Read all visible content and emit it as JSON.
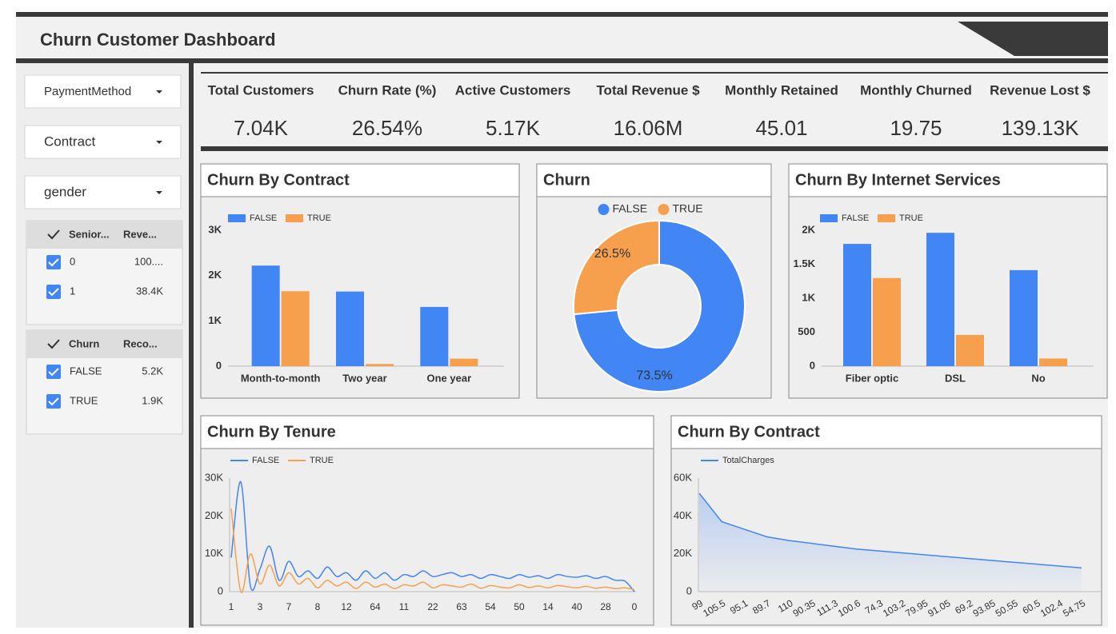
{
  "header": {
    "title": "Churn Customer Dashboard"
  },
  "filters": [
    "PaymentMethod",
    "Contract",
    "gender"
  ],
  "tables": [
    {
      "columns": [
        "Senior...",
        "Reve..."
      ],
      "rows": [
        [
          "0",
          "100...."
        ],
        [
          "1",
          "38.4K"
        ]
      ]
    },
    {
      "columns": [
        "Churn",
        "Reco..."
      ],
      "rows": [
        [
          "FALSE",
          "5.2K"
        ],
        [
          "TRUE",
          "1.9K"
        ]
      ]
    }
  ],
  "kpis": [
    {
      "label": "Total Customers",
      "value": "7.04K"
    },
    {
      "label": "Churn Rate (%)",
      "value": "26.54%"
    },
    {
      "label": "Active Customers",
      "value": "5.17K"
    },
    {
      "label": "Total Revenue $",
      "value": "16.06M"
    },
    {
      "label": "Monthly Retained",
      "value": "45.01"
    },
    {
      "label": "Monthly Churned",
      "value": "19.75"
    },
    {
      "label": "Revenue Lost $",
      "value": "139.13K"
    }
  ],
  "chart_data": [
    {
      "type": "bar",
      "title": "Churn By Contract",
      "categories": [
        "Month-to-month",
        "Two year",
        "One year"
      ],
      "series": [
        {
          "name": "FALSE",
          "color": "#4285f4",
          "values": [
            2220,
            1647,
            1307
          ]
        },
        {
          "name": "TRUE",
          "color": "#f6a04d",
          "values": [
            1655,
            48,
            166
          ]
        }
      ],
      "ylim": [
        0,
        3000
      ],
      "yticks": [
        0,
        {
          "value": 1000,
          "label": "1K"
        },
        {
          "value": 2000,
          "label": "2K"
        },
        {
          "value": 3000,
          "label": "3K"
        }
      ],
      "grid": false
    },
    {
      "type": "pie",
      "title": "Churn",
      "categories": [
        "FALSE",
        "TRUE"
      ],
      "values": [
        73.5,
        26.5
      ],
      "value_labels": [
        "73.5%",
        "26.5%"
      ],
      "colors": [
        "#4285f4",
        "#f6a04d"
      ],
      "donut": true
    },
    {
      "type": "bar",
      "title": "Churn By Internet Services",
      "categories": [
        "Fiber optic",
        "DSL",
        "No"
      ],
      "series": [
        {
          "name": "FALSE",
          "color": "#4285f4",
          "values": [
            1799,
            1962,
            1413
          ]
        },
        {
          "name": "TRUE",
          "color": "#f6a04d",
          "values": [
            1297,
            459,
            113
          ]
        }
      ],
      "ylim": [
        0,
        2000
      ],
      "yticks": [
        0,
        500,
        {
          "value": 1000,
          "label": "1K"
        },
        {
          "value": 1500,
          "label": "1.5K"
        },
        {
          "value": 2000,
          "label": "2K"
        }
      ],
      "grid": false
    },
    {
      "type": "line",
      "title": "Churn By Tenure",
      "categories": [
        "1",
        null,
        null,
        "3",
        null,
        null,
        "7",
        null,
        null,
        "8",
        null,
        null,
        "12",
        null,
        null,
        "64",
        null,
        null,
        "11",
        null,
        null,
        "22",
        null,
        null,
        "63",
        null,
        null,
        "54",
        null,
        null,
        "50",
        null,
        null,
        "14",
        null,
        null,
        "40",
        null,
        null,
        "28",
        null,
        null,
        "0"
      ],
      "series": [
        {
          "name": "FALSE",
          "color": "#4285f4",
          "values": [
            9000,
            29000,
            1500,
            6000,
            12000,
            3000,
            8000,
            4000,
            5500,
            3500,
            6500,
            4000,
            5000,
            3000,
            5500,
            3500,
            5000,
            3000,
            4500,
            4000,
            5500,
            4000,
            4500,
            5000,
            4000,
            4500,
            3500,
            4500,
            4000,
            3500,
            4500,
            3800,
            4200,
            3500,
            4500,
            4000,
            3800,
            4200,
            3500,
            4000,
            3000,
            2800,
            0
          ]
        },
        {
          "name": "TRUE",
          "color": "#f6a04d",
          "values": [
            22000,
            0,
            10000,
            2000,
            7000,
            1500,
            5000,
            2000,
            3500,
            1000,
            3000,
            1500,
            2500,
            800,
            2500,
            1200,
            2000,
            800,
            1800,
            1500,
            2500,
            1000,
            1800,
            1500,
            1200,
            2000,
            900,
            1600,
            1200,
            1000,
            1800,
            1100,
            1500,
            1000,
            1600,
            1300,
            1000,
            1400,
            900,
            1200,
            800,
            1000,
            500
          ]
        }
      ],
      "ylim": [
        0,
        30000
      ],
      "yticks": [
        0,
        {
          "value": 10000,
          "label": "10K"
        },
        {
          "value": 20000,
          "label": "20K"
        },
        {
          "value": 30000,
          "label": "30K"
        }
      ],
      "grid": false
    },
    {
      "type": "area",
      "title": "Churn By Contract",
      "categories": [
        "99",
        "105.5",
        "95.1",
        "89.7",
        "110",
        "90.35",
        "111.3",
        "100.6",
        "74.3",
        "103.2",
        "79.95",
        "91.05",
        "69.2",
        "93.85",
        "50.55",
        "60.5",
        "102.4",
        "54.75"
      ],
      "series": [
        {
          "name": "TotalCharges",
          "color": "#4285f4",
          "values": [
            52000,
            37000,
            33000,
            29000,
            27000,
            25500,
            24000,
            22500,
            21500,
            20500,
            19500,
            18500,
            17500,
            16500,
            15500,
            14500,
            13500,
            12500
          ]
        }
      ],
      "ylim": [
        0,
        60000
      ],
      "yticks": [
        0,
        {
          "value": 20000,
          "label": "20K"
        },
        {
          "value": 40000,
          "label": "40K"
        },
        {
          "value": 60000,
          "label": "60K"
        }
      ],
      "grid": false
    }
  ]
}
